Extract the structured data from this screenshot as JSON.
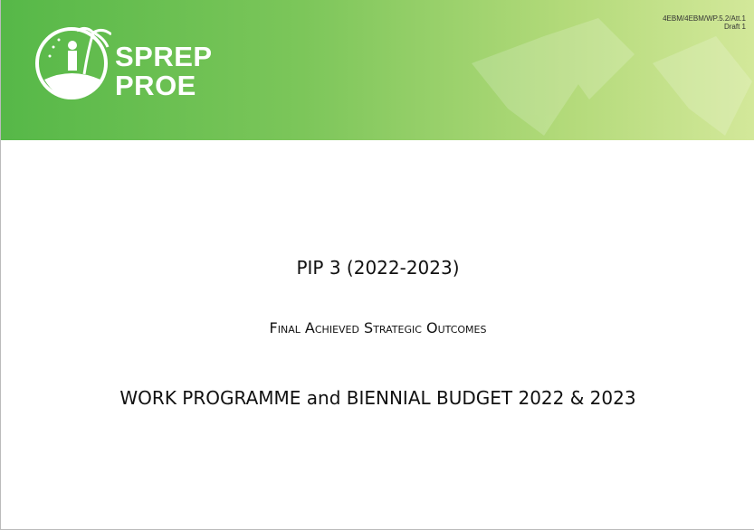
{
  "header": {
    "reference": "4EBM/4EBM/WP.5.2/Att.1",
    "draft": "Draft 1",
    "brand_line1": "SPREP",
    "brand_line2": "PROE"
  },
  "title": "PIP 3 (2022-2023)",
  "subtitle": "Final Achieved Strategic Outcomes",
  "heading": "WORK PROGRAMME and BIENNIAL BUDGET 2022 & 2023"
}
